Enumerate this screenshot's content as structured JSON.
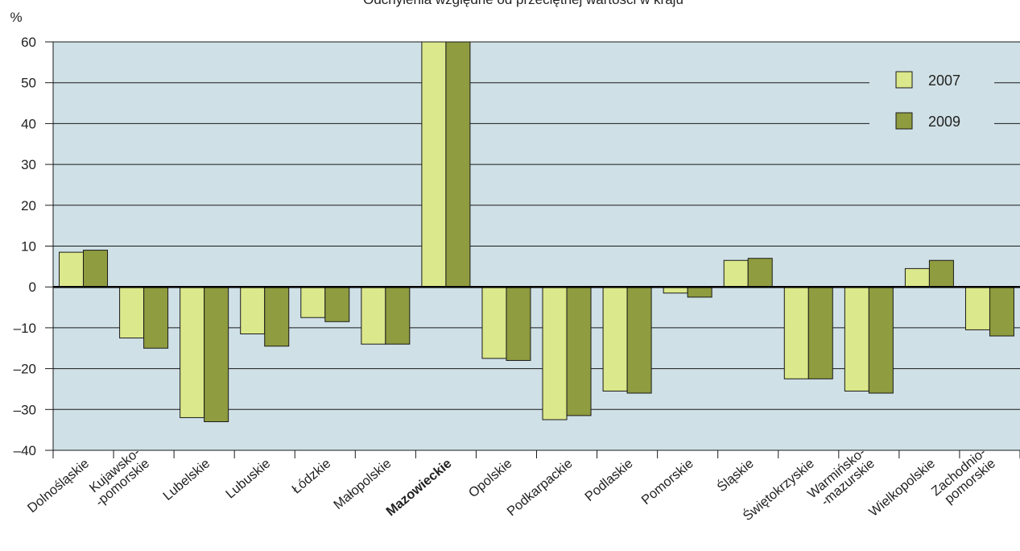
{
  "chart_data": {
    "type": "bar",
    "title": "Odchylenia względne od przeciętnej wartości w kraju",
    "ylabel": "%",
    "ylim": [
      -40,
      60
    ],
    "yticks": [
      -40,
      -30,
      -20,
      -10,
      0,
      10,
      20,
      30,
      40,
      50,
      60
    ],
    "grid": true,
    "legend_position": "top-right",
    "categories": [
      [
        "Dolnośląskie"
      ],
      [
        "Kujawsko-",
        "-pomorskie"
      ],
      [
        "Lubelskie"
      ],
      [
        "Lubuskie"
      ],
      [
        "Łódzkie"
      ],
      [
        "Małopolskie"
      ],
      [
        "Mazowieckie"
      ],
      [
        "Opolskie"
      ],
      [
        "Podkarpackie"
      ],
      [
        "Podlaskie"
      ],
      [
        "Pomorskie"
      ],
      [
        "Śląskie"
      ],
      [
        "Świętokrzyskie"
      ],
      [
        "Warmińsko-",
        "-mazurskie"
      ],
      [
        "Wielkopolskie"
      ],
      [
        "Zachodnio-",
        "pomorskie"
      ]
    ],
    "bold_categories": [
      "Mazowieckie"
    ],
    "series": [
      {
        "name": "2007",
        "color": "#dbe88b",
        "values": [
          8.5,
          -12.5,
          -32,
          -11.5,
          -7.5,
          -14,
          60,
          -17.5,
          -32.5,
          -25.5,
          -1.5,
          6.5,
          -22.5,
          -25.5,
          4.5,
          -10.5
        ]
      },
      {
        "name": "2009",
        "color": "#8f9c3f",
        "values": [
          9,
          -15,
          -33,
          -14.5,
          -8.5,
          -14,
          60,
          -18,
          -31.5,
          -26,
          -2.5,
          7,
          -22.5,
          -26,
          6.5,
          -12
        ]
      }
    ],
    "plot_background": "#cfe0e6",
    "zero_line_color": "#000000"
  }
}
